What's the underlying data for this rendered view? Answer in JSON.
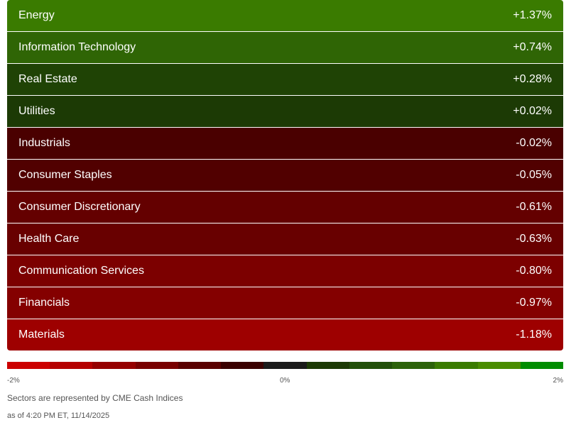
{
  "sectors": [
    {
      "name": "Energy",
      "change": "+1.37%",
      "color": "#3a7b00"
    },
    {
      "name": "Information Technology",
      "change": "+0.74%",
      "color": "#2f6505"
    },
    {
      "name": "Real Estate",
      "change": "+0.28%",
      "color": "#1f4305"
    },
    {
      "name": "Utilities",
      "change": "+0.02%",
      "color": "#1c3a05"
    },
    {
      "name": "Industrials",
      "change": "-0.02%",
      "color": "#4a0000"
    },
    {
      "name": "Consumer Staples",
      "change": "-0.05%",
      "color": "#510000"
    },
    {
      "name": "Consumer Discretionary",
      "change": "-0.61%",
      "color": "#640000"
    },
    {
      "name": "Health Care",
      "change": "-0.63%",
      "color": "#680000"
    },
    {
      "name": "Communication Services",
      "change": "-0.80%",
      "color": "#7c0000"
    },
    {
      "name": "Financials",
      "change": "-0.97%",
      "color": "#840000"
    },
    {
      "name": "Materials",
      "change": "-1.18%",
      "color": "#9e0000"
    }
  ],
  "scale": {
    "colors": [
      "#cc0000",
      "#b50000",
      "#960000",
      "#790000",
      "#5a0000",
      "#3a0000",
      "#1a1a1a",
      "#1c3a05",
      "#22500a",
      "#2c620a",
      "#3a7b00",
      "#4a8c00",
      "#008c00"
    ],
    "min_label": "-2%",
    "mid_label": "0%",
    "max_label": "2%"
  },
  "footnote": "Sectors are represented by CME Cash Indices",
  "timestamp": "as of 4:20 PM ET, 11/14/2025"
}
